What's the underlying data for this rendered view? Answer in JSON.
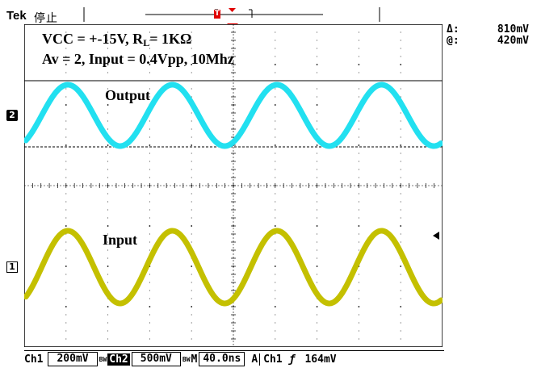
{
  "header": {
    "brand": "Tek",
    "acq_state": "停止",
    "trigger_marker": "T"
  },
  "cursor": {
    "delta_label": "Δ:",
    "delta_value": "810mV",
    "at_label": "@:",
    "at_value": "420mV"
  },
  "annotations": {
    "line1_prefix": "VCC = +-15V, R",
    "line1_sub": "L",
    "line1_suffix": "= 1KΩ",
    "line2": "Av = 2, Input = 0.4Vpp, 10Mhz",
    "output_label": "Output",
    "input_label": "Input"
  },
  "channel_markers": {
    "ch2": "2",
    "ch1": "1"
  },
  "status_bar": {
    "ch1_label": "Ch1",
    "ch1_scale": "200mV",
    "ch2_coupling": "BW",
    "ch2_label": "Ch2",
    "ch2_scale": "500mV",
    "timebase_coupling": "BW",
    "timebase_label": "M",
    "timebase": "40.0ns",
    "trigger_mode": "A",
    "trigger_source": "Ch1",
    "trigger_slope": "ƒ",
    "trigger_level": "164mV"
  },
  "colors": {
    "ch1_trace": "#c4c000",
    "ch2_trace": "#22e0f0",
    "grid": "#000000",
    "trigger_marker": "#e00000"
  },
  "chart_data": {
    "type": "line",
    "series": [
      {
        "name": "Output",
        "frequency_mhz": 10,
        "cycles_on_screen": 4,
        "color": "#22e0f0"
      },
      {
        "name": "Input",
        "frequency_mhz": 10,
        "amplitude_vpp": 0.4,
        "cycles_on_screen": 4,
        "color": "#c4c000"
      }
    ],
    "grid": true,
    "divisions_x": 10,
    "divisions_y": 8
  }
}
